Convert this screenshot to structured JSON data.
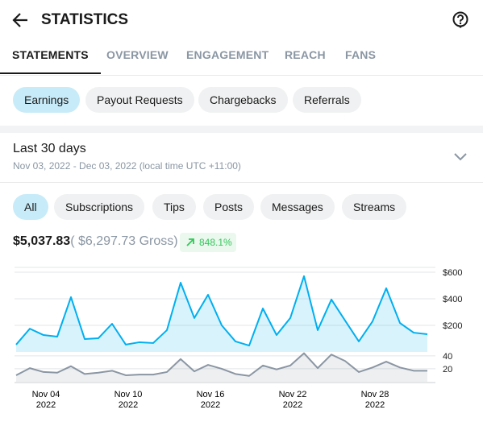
{
  "header": {
    "title": "STATISTICS"
  },
  "tabs": {
    "items": [
      "STATEMENTS",
      "OVERVIEW",
      "ENGAGEMENT",
      "REACH",
      "FANS"
    ],
    "active": 0
  },
  "statement_types": {
    "items": [
      "Earnings",
      "Payout Requests",
      "Chargebacks",
      "Referrals"
    ],
    "active": 0
  },
  "period": {
    "title": "Last 30 days",
    "range": "Nov 03, 2022 - Dec 03, 2022 (local time UTC +11:00)"
  },
  "filters": {
    "items": [
      "All",
      "Subscriptions",
      "Tips",
      "Posts",
      "Messages",
      "Streams"
    ],
    "active": 0
  },
  "summary": {
    "net": "$5,037.83",
    "gross": "( $6,297.73 Gross)",
    "change": "848.1%"
  },
  "chart_data": [
    {
      "type": "area",
      "color": "#00aff0",
      "values": [
        55,
        175,
        127,
        115,
        412,
        97,
        103,
        212,
        55,
        73,
        67,
        164,
        521,
        255,
        430,
        200,
        79,
        48,
        327,
        127,
        255,
        570,
        164,
        394,
        236,
        79,
        230,
        479,
        218,
        145,
        133
      ],
      "ylim": [
        0,
        636
      ],
      "yticks": [
        {
          "value": 200,
          "label": "$200"
        },
        {
          "value": 400,
          "label": "$400"
        },
        {
          "value": 600,
          "label": "$600"
        }
      ],
      "grid": true
    },
    {
      "type": "area",
      "color": "#8a96a3",
      "values": [
        10,
        21,
        15,
        14,
        24,
        12,
        14,
        17,
        10,
        11,
        11,
        15,
        35,
        16,
        26,
        20,
        12,
        9,
        25,
        19,
        25,
        44,
        21,
        42,
        32,
        15,
        22,
        31,
        22,
        17,
        17
      ],
      "ylim": [
        0,
        46
      ],
      "yticks": [
        20,
        40
      ],
      "grid": true,
      "categories": [
        null,
        null,
        "Nov 04",
        null,
        null,
        null,
        null,
        null,
        "Nov 10",
        null,
        null,
        null,
        null,
        null,
        "Nov 16",
        null,
        null,
        null,
        null,
        null,
        "Nov 22",
        null,
        null,
        null,
        null,
        null,
        "Nov 28",
        null,
        null,
        null,
        null
      ],
      "x_sublabel": "2022"
    }
  ]
}
